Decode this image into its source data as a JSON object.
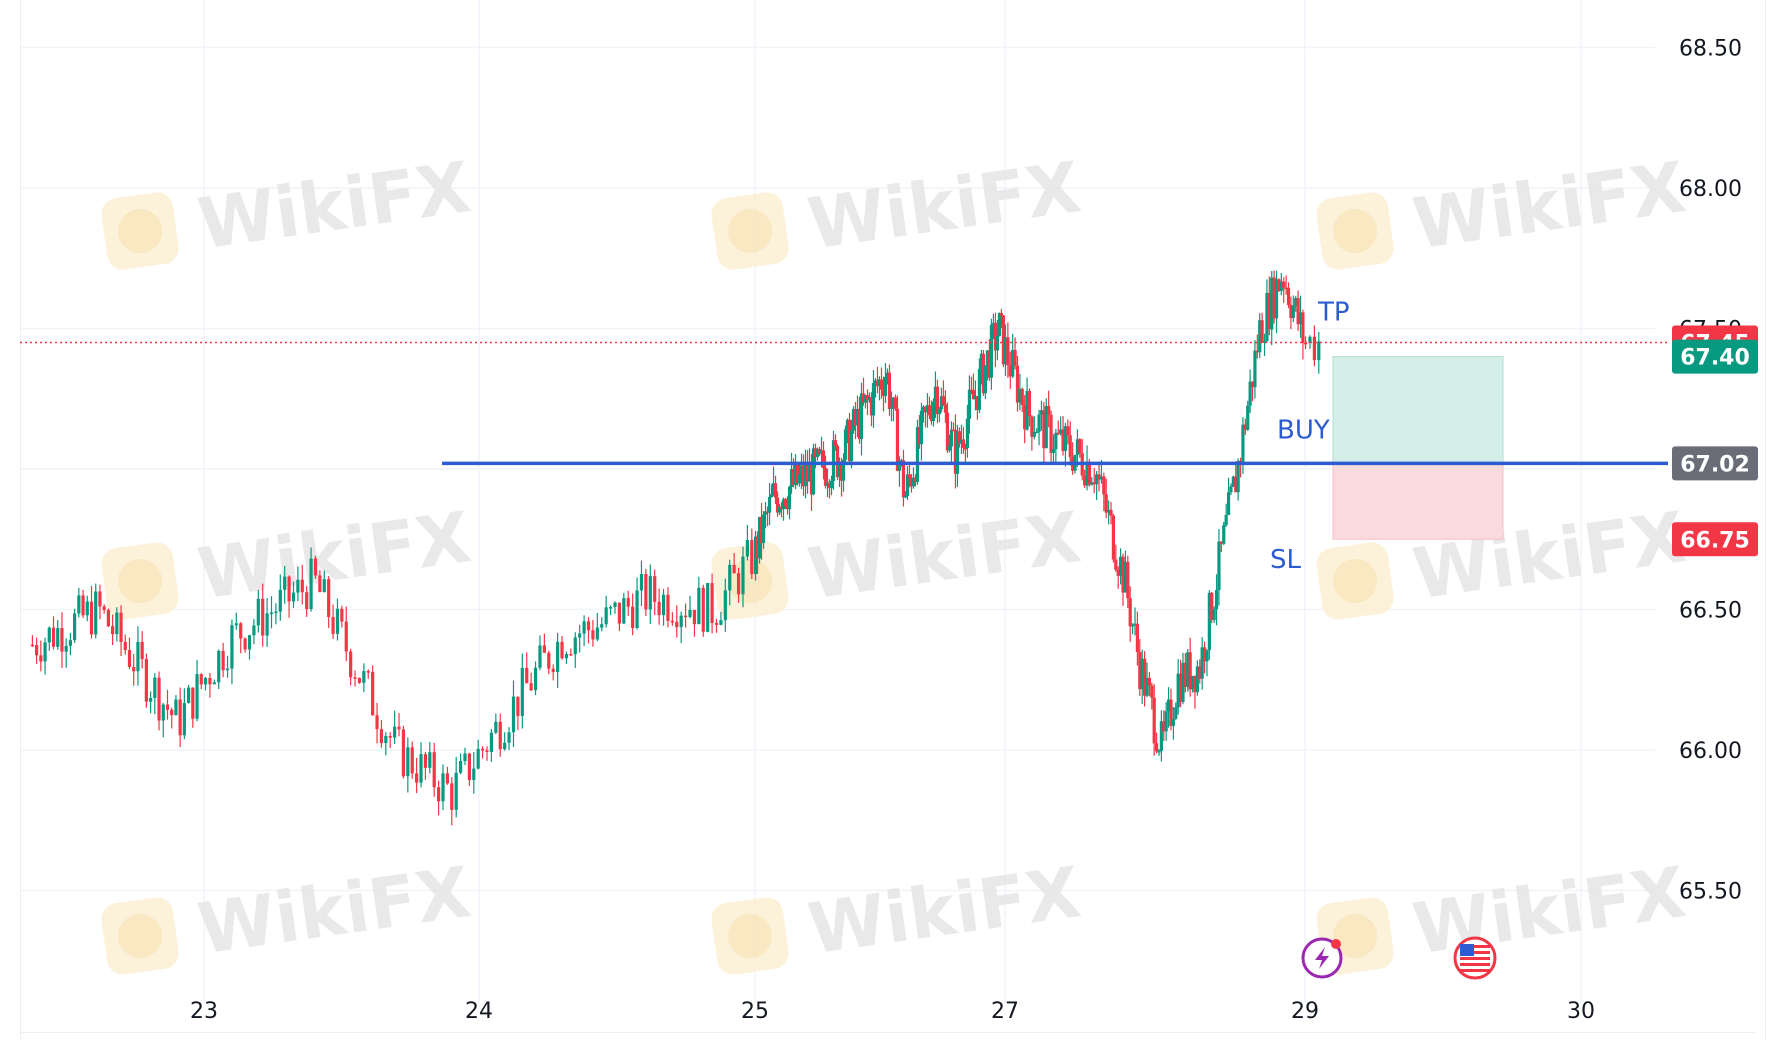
{
  "watermark_text": "WikiFX",
  "chart_data": {
    "type": "candlestick",
    "x_ticks": [
      "23",
      "24",
      "25",
      "27",
      "29",
      "30"
    ],
    "y_ticks": [
      "65.50",
      "66.00",
      "66.50",
      "67.00",
      "67.50",
      "68.00",
      "68.50"
    ],
    "ylim": [
      65.2,
      68.68
    ],
    "grid": true,
    "price_tags": [
      {
        "label": "67.45",
        "value": 67.45,
        "color": "#f23645"
      },
      {
        "label": "67.40",
        "value": 67.4,
        "color": "#089981"
      },
      {
        "label": "67.02",
        "value": 67.02,
        "color": "#6a6d78"
      },
      {
        "label": "66.75",
        "value": 66.75,
        "color": "#f23645"
      }
    ],
    "support_line": {
      "value": 67.02,
      "color": "#2d5bd1"
    },
    "position": {
      "type": "long",
      "entry": 67.02,
      "take_profit": 67.4,
      "stop_loss": 66.75
    },
    "annotations": [
      {
        "text": "TP",
        "value": 67.56
      },
      {
        "text": "BUY",
        "value": 67.14
      },
      {
        "text": "SL",
        "value": 66.68
      }
    ],
    "price_path": {
      "x": [
        22.0,
        22.3,
        22.6,
        22.9,
        23.1,
        23.4,
        23.7,
        23.9,
        24.3,
        24.45,
        24.6,
        24.85,
        25.15,
        25.7,
        25.8,
        26.05,
        26.2,
        26.35,
        26.45,
        26.6,
        26.75,
        26.95,
        27.15,
        27.35,
        27.6,
        27.8,
        27.9,
        28.05,
        28.15,
        28.3,
        28.55,
        28.7,
        28.85,
        29.0
      ],
      "values": [
        66.45,
        66.35,
        66.5,
        66.1,
        66.4,
        66.6,
        66.0,
        65.85,
        66.4,
        66.45,
        66.55,
        66.5,
        66.9,
        67.05,
        67.15,
        67.35,
        66.9,
        67.15,
        67.3,
        67.05,
        67.25,
        67.5,
        67.2,
        67.1,
        67.0,
        66.6,
        66.3,
        66.0,
        66.25,
        66.3,
        67.0,
        67.5,
        67.7,
        67.45
      ]
    },
    "candles": {
      "x_start": 22.35,
      "x_end": 29.05,
      "count": 420,
      "wick_range": 0.06
    },
    "icons": [
      {
        "name": "lightning-icon",
        "x": 29.05
      },
      {
        "name": "us-flag-icon",
        "x": 29.6
      }
    ]
  }
}
